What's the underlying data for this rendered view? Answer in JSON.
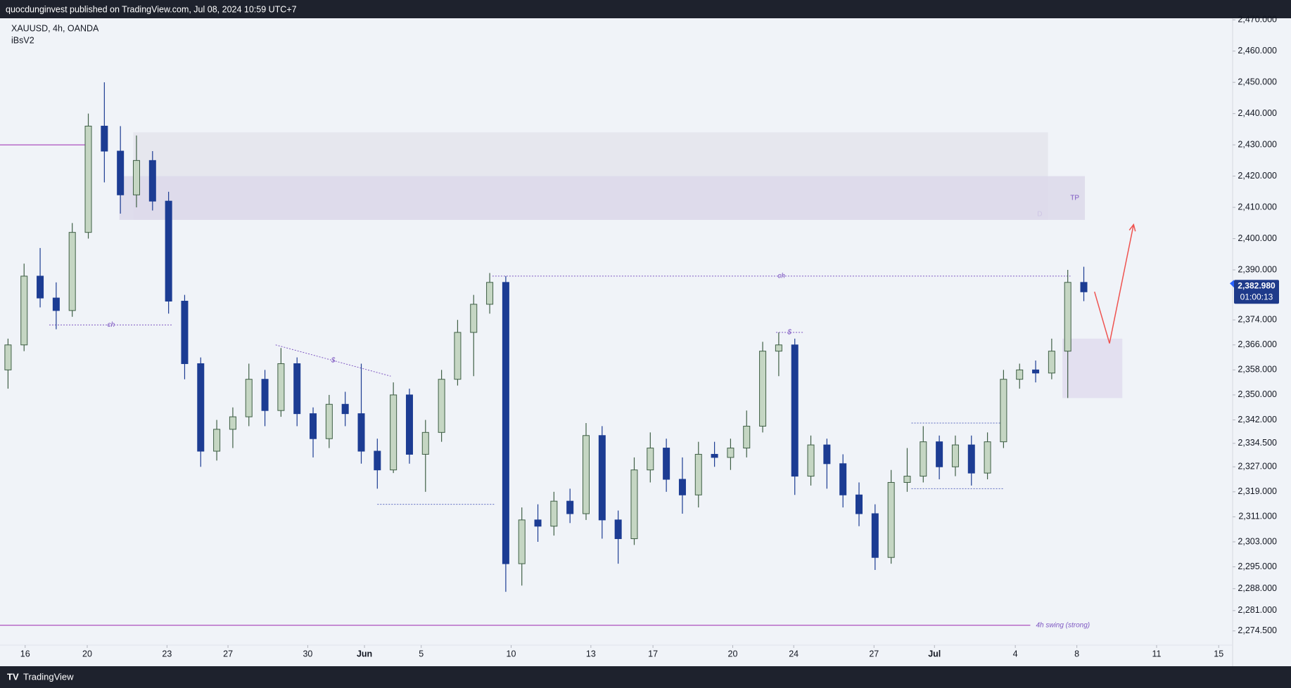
{
  "header": {
    "text": "quocdunginvest published on TradingView.com, Jul 08, 2024 10:59 UTC+7"
  },
  "footer": {
    "brand": "TradingView"
  },
  "chart_data": {
    "type": "candlestick",
    "title": "XAUUSD, 4h, OANDA",
    "subtitle": "iBsV2",
    "x": [
      0,
      3,
      6,
      9,
      12,
      15,
      18,
      21,
      24,
      27,
      30,
      33,
      36,
      39,
      42,
      45,
      48,
      51,
      54,
      57,
      60,
      63,
      66,
      69,
      72,
      75,
      78,
      81,
      84,
      87,
      90,
      93,
      96,
      99,
      102,
      105,
      108,
      111,
      114,
      117,
      120,
      123,
      126,
      129,
      132,
      135,
      138,
      141,
      144,
      147,
      150,
      153,
      156,
      159,
      162,
      165,
      168,
      171,
      174,
      177,
      180,
      183,
      186,
      189,
      192,
      195,
      198,
      201
    ],
    "open": [
      2358,
      2366,
      2388,
      2381,
      2377,
      2402,
      2436,
      2428,
      2414,
      2425,
      2412,
      2380,
      2360,
      2332,
      2339,
      2343,
      2355,
      2345,
      2360,
      2344,
      2336,
      2347,
      2344,
      2332,
      2326,
      2350,
      2331,
      2338,
      2355,
      2370,
      2379,
      2386,
      2296,
      2310,
      2308,
      2316,
      2312,
      2337,
      2310,
      2304,
      2326,
      2333,
      2323,
      2318,
      2331,
      2330,
      2333,
      2340,
      2364,
      2366,
      2324,
      2334,
      2328,
      2318,
      2312,
      2298,
      2322,
      2324,
      2335,
      2327,
      2334,
      2325,
      2335,
      2355,
      2358,
      2357,
      2364,
      2386
    ],
    "high": [
      2368,
      2392,
      2397,
      2386,
      2405,
      2440,
      2450,
      2436,
      2433,
      2428,
      2415,
      2382,
      2362,
      2342,
      2346,
      2360,
      2358,
      2365,
      2362,
      2346,
      2350,
      2351,
      2360,
      2336,
      2354,
      2352,
      2342,
      2358,
      2374,
      2382,
      2389,
      2388,
      2314,
      2315,
      2319,
      2320,
      2341,
      2340,
      2313,
      2330,
      2338,
      2336,
      2330,
      2335,
      2335,
      2336,
      2345,
      2367,
      2370,
      2368,
      2337,
      2336,
      2331,
      2322,
      2315,
      2326,
      2333,
      2340,
      2337,
      2337,
      2337,
      2338,
      2358,
      2360,
      2361,
      2368,
      2390,
      2391
    ],
    "low": [
      2352,
      2364,
      2378,
      2371,
      2375,
      2400,
      2418,
      2408,
      2410,
      2409,
      2376,
      2355,
      2327,
      2329,
      2333,
      2340,
      2340,
      2343,
      2340,
      2330,
      2333,
      2340,
      2328,
      2320,
      2325,
      2328,
      2319,
      2335,
      2353,
      2356,
      2376,
      2287,
      2289,
      2303,
      2305,
      2309,
      2310,
      2304,
      2296,
      2302,
      2322,
      2319,
      2312,
      2314,
      2327,
      2326,
      2330,
      2338,
      2356,
      2318,
      2321,
      2320,
      2314,
      2308,
      2294,
      2296,
      2319,
      2322,
      2323,
      2324,
      2321,
      2323,
      2333,
      2352,
      2354,
      2355,
      2349,
      2380
    ],
    "close": [
      2366,
      2388,
      2381,
      2377,
      2402,
      2436,
      2428,
      2414,
      2425,
      2412,
      2380,
      2360,
      2332,
      2339,
      2343,
      2355,
      2345,
      2360,
      2344,
      2336,
      2347,
      2344,
      2332,
      2326,
      2350,
      2331,
      2338,
      2355,
      2370,
      2379,
      2386,
      2296,
      2310,
      2308,
      2316,
      2312,
      2337,
      2310,
      2304,
      2326,
      2333,
      2323,
      2318,
      2331,
      2330,
      2333,
      2340,
      2364,
      2366,
      2324,
      2334,
      2328,
      2318,
      2312,
      2298,
      2322,
      2324,
      2335,
      2327,
      2334,
      2325,
      2335,
      2355,
      2358,
      2357,
      2364,
      2386,
      2382.98
    ],
    "up_color": "#c5d6c3",
    "up_edge": "#3f5f45",
    "down_color": "#1c3c93",
    "last_price": 2382.98,
    "last_price_label": "2,382.980",
    "countdown": "01:00:13",
    "last_color": "#1e3a8a",
    "xlim": [
      -1.5,
      228.8
    ],
    "ylim": [
      2265,
      2470.5
    ],
    "xticks": [
      {
        "value": 3.2,
        "label": "16"
      },
      {
        "value": 14.8,
        "label": "20"
      },
      {
        "value": 29.7,
        "label": "23"
      },
      {
        "value": 41.1,
        "label": "27"
      },
      {
        "value": 56,
        "label": "30"
      },
      {
        "value": 66.6,
        "label": "Jun"
      },
      {
        "value": 77.2,
        "label": "5"
      },
      {
        "value": 94,
        "label": "10"
      },
      {
        "value": 108.9,
        "label": "13"
      },
      {
        "value": 120.5,
        "label": "17"
      },
      {
        "value": 135.4,
        "label": "20"
      },
      {
        "value": 146.8,
        "label": "24"
      },
      {
        "value": 161.8,
        "label": "27"
      },
      {
        "value": 173.1,
        "label": "Jul"
      },
      {
        "value": 188.2,
        "label": "4"
      },
      {
        "value": 199.7,
        "label": "8"
      },
      {
        "value": 214.6,
        "label": "11"
      },
      {
        "value": 226.2,
        "label": "15"
      }
    ],
    "yticks": [
      {
        "value": 2470,
        "label": "2,470.000"
      },
      {
        "value": 2460,
        "label": "2,460.000"
      },
      {
        "value": 2450,
        "label": "2,450.000"
      },
      {
        "value": 2440,
        "label": "2,440.000"
      },
      {
        "value": 2430,
        "label": "2,430.000"
      },
      {
        "value": 2420,
        "label": "2,420.000"
      },
      {
        "value": 2410,
        "label": "2,410.000"
      },
      {
        "value": 2400,
        "label": "2,400.000"
      },
      {
        "value": 2390,
        "label": "2,390.000"
      },
      {
        "value": 2374,
        "label": "2,374.000"
      },
      {
        "value": 2366,
        "label": "2,366.000"
      },
      {
        "value": 2358,
        "label": "2,358.000"
      },
      {
        "value": 2350,
        "label": "2,350.000"
      },
      {
        "value": 2342,
        "label": "2,342.000"
      },
      {
        "value": 2334.5,
        "label": "2,334.500"
      },
      {
        "value": 2327,
        "label": "2,327.000"
      },
      {
        "value": 2319,
        "label": "2,319.000"
      },
      {
        "value": 2311,
        "label": "2,311.000"
      },
      {
        "value": 2303,
        "label": "2,303.000"
      },
      {
        "value": 2295,
        "label": "2,295.000"
      },
      {
        "value": 2288,
        "label": "2,288.000"
      },
      {
        "value": 2281,
        "label": "2,281.000"
      },
      {
        "value": 2274.5,
        "label": "2,274.500"
      }
    ],
    "zones": [
      {
        "x": [
          23.4,
          194.3
        ],
        "y": [
          2406,
          2434
        ],
        "color": "#e4e4ec",
        "label": "D",
        "label_pos": "bottom"
      },
      {
        "x": [
          20.8,
          201.2
        ],
        "y": [
          2406,
          2420
        ],
        "color": "#dcd8ea",
        "label": "TP",
        "label_pos": "middle"
      },
      {
        "x": [
          197,
          208.2
        ],
        "y": [
          2349,
          2368
        ],
        "color": "#e0dcef"
      }
    ],
    "lines": [
      {
        "x": [
          -1.5,
          15.4
        ],
        "y": [
          2430,
          2430
        ],
        "color": "#9c27b0"
      },
      {
        "x": [
          -1.5,
          191
        ],
        "y": [
          2276.3,
          2276.3
        ],
        "color": "#9c27b0",
        "label": "4h swing (strong)",
        "label_pos": "end"
      },
      {
        "x": [
          90.5,
          198.5
        ],
        "y": [
          2388,
          2388
        ],
        "color": "#7e57c2",
        "dash": true,
        "label": "ch"
      },
      {
        "x": [
          7.7,
          30.8
        ],
        "y": [
          2372.4,
          2372.4
        ],
        "color": "#7e57c2",
        "dash": true,
        "label": "ch"
      },
      {
        "x": [
          50,
          71.5
        ],
        "y": [
          2366,
          2356
        ],
        "color": "#7e57c2",
        "dash": true,
        "label": "$"
      },
      {
        "x": [
          143.5,
          148.5
        ],
        "y": [
          2370,
          2370
        ],
        "color": "#7e57c2",
        "dash": true,
        "label": "$"
      },
      {
        "x": [
          69,
          91
        ],
        "y": [
          2315,
          2315
        ],
        "color": "#5c6bc0",
        "dash": true
      },
      {
        "x": [
          168.8,
          186
        ],
        "y": [
          2341,
          2341
        ],
        "color": "#5c6bc0",
        "dash": true
      },
      {
        "x": [
          168.8,
          186
        ],
        "y": [
          2320,
          2320
        ],
        "color": "#5c6bc0",
        "dash": true
      }
    ],
    "arrow": {
      "x": [
        203,
        205.8,
        210.3
      ],
      "y": [
        2383,
        2366.5,
        2404.5
      ],
      "color": "#ef5350"
    }
  }
}
